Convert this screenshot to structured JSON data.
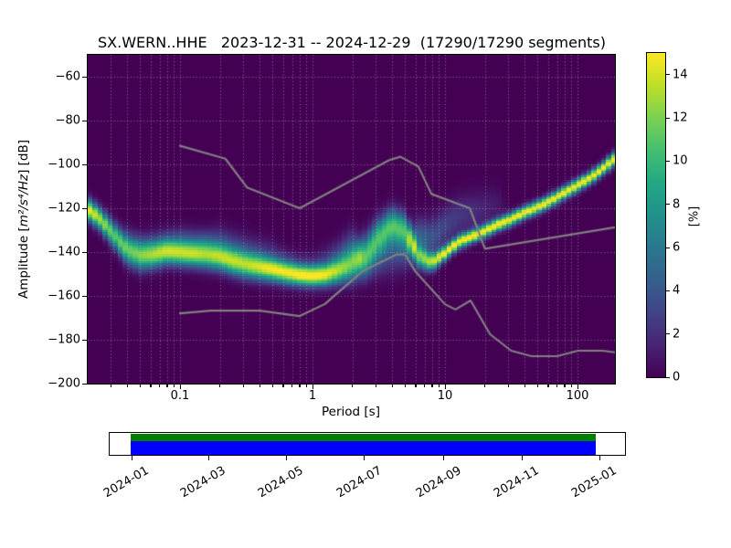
{
  "title": "SX.WERN..HHE   2023-12-31 -- 2024-12-29  (17290/17290 segments)",
  "station": "SX.WERN..HHE",
  "date_range": [
    "2023-12-31",
    "2024-12-29"
  ],
  "segments_used": 17290,
  "segments_total": 17290,
  "chart_data": {
    "type": "heatmap",
    "title": "SX.WERN..HHE   2023-12-31 -- 2024-12-29  (17290/17290 segments)",
    "xlabel": "Period [s]",
    "ylabel": "Amplitude [m²/s⁴/Hz] [dB]",
    "ylabel_parts": {
      "prefix": "Amplitude [",
      "math": "m²/s⁴/Hz",
      "suffix": "] [dB]"
    },
    "x_scale": "log",
    "xlim": [
      0.02,
      192
    ],
    "ylim": [
      -200,
      -50
    ],
    "grid": true,
    "grid_color": "rgba(190,190,190,0.6)",
    "background_color": "#440154",
    "x_ticks": {
      "major": [
        0.1,
        1,
        10,
        100
      ],
      "major_labels": [
        "0.1",
        "1",
        "10",
        "100"
      ],
      "minor": [
        0.02,
        0.03,
        0.04,
        0.05,
        0.06,
        0.07,
        0.08,
        0.09,
        0.2,
        0.3,
        0.4,
        0.5,
        0.6,
        0.7,
        0.8,
        0.9,
        2,
        3,
        4,
        5,
        6,
        7,
        8,
        9,
        20,
        30,
        40,
        50,
        60,
        70,
        80,
        90,
        200
      ]
    },
    "y_ticks": {
      "values": [
        -200,
        -180,
        -160,
        -140,
        -120,
        -100,
        -80,
        -60
      ],
      "labels": [
        "−200",
        "−180",
        "−160",
        "−140",
        "−120",
        "−100",
        "−80",
        "−60"
      ]
    },
    "y_gridlines": [
      -180,
      -160,
      -140,
      -120,
      -100,
      -80,
      -60
    ],
    "colorbar": {
      "label": "[%]",
      "min": 0,
      "max": 15,
      "ticks": [
        0,
        2,
        4,
        6,
        8,
        10,
        12,
        14
      ],
      "tick_labels": [
        "0",
        "2",
        "4",
        "6",
        "8",
        "10",
        "12",
        "14"
      ],
      "colormap": "viridis",
      "stops": [
        [
          0.0,
          "#440154"
        ],
        [
          0.1,
          "#482475"
        ],
        [
          0.2,
          "#414487"
        ],
        [
          0.3,
          "#355f8d"
        ],
        [
          0.4,
          "#2a788e"
        ],
        [
          0.5,
          "#21918c"
        ],
        [
          0.6,
          "#22a884"
        ],
        [
          0.7,
          "#44bf70"
        ],
        [
          0.8,
          "#7ad151"
        ],
        [
          0.9,
          "#bddf26"
        ],
        [
          1.0,
          "#fde725"
        ]
      ]
    },
    "pdf": {
      "description": "PPSD probability ridge: per period [s] the mode amplitude [dB], gaussian spread sigma [dB], peak probability [%], plus secondary halo component (offset dB, sigma dB, amplitude %).",
      "columns_format": [
        "period_s",
        "mode_db",
        "sigma_db",
        "peak_pct",
        "halo_offset_db",
        "halo_sigma_db",
        "halo_pct"
      ],
      "columns": [
        [
          0.02,
          -120.0,
          3.2,
          15.0,
          0,
          4,
          0
        ],
        [
          0.025,
          -125.0,
          3.4,
          13.0,
          0,
          4,
          0
        ],
        [
          0.032,
          -132.5,
          3.8,
          11.0,
          0,
          4,
          0
        ],
        [
          0.04,
          -139.5,
          4.2,
          10.5,
          5,
          4,
          2.0
        ],
        [
          0.05,
          -142.0,
          4.2,
          11.0,
          5,
          4,
          2.5
        ],
        [
          0.063,
          -141.5,
          4.0,
          12.0,
          5,
          4,
          2.5
        ],
        [
          0.079,
          -140.0,
          3.8,
          13.0,
          5,
          4,
          2.5
        ],
        [
          0.1,
          -140.5,
          3.8,
          13.0,
          6,
          4,
          3.0
        ],
        [
          0.126,
          -141.0,
          3.8,
          13.0,
          6,
          4,
          3.0
        ],
        [
          0.158,
          -141.5,
          4.0,
          12.0,
          6,
          4,
          3.5
        ],
        [
          0.2,
          -142.5,
          4.0,
          12.0,
          6,
          5,
          3.5
        ],
        [
          0.251,
          -144.5,
          4.0,
          12.0,
          6,
          5,
          3.5
        ],
        [
          0.316,
          -146.0,
          4.0,
          12.0,
          6,
          5,
          3.0
        ],
        [
          0.398,
          -147.0,
          3.8,
          13.0,
          6,
          5,
          2.5
        ],
        [
          0.501,
          -148.0,
          3.6,
          14.0,
          6,
          5,
          2.0
        ],
        [
          0.631,
          -149.5,
          3.4,
          14.0,
          5,
          4,
          2.0
        ],
        [
          0.794,
          -150.5,
          3.2,
          15.0,
          5,
          4,
          1.5
        ],
        [
          1.0,
          -151.0,
          3.2,
          15.0,
          5,
          4,
          1.5
        ],
        [
          1.259,
          -150.5,
          3.4,
          14.0,
          6,
          5,
          2.0
        ],
        [
          1.585,
          -148.5,
          4.0,
          12.0,
          7,
          5,
          3.0
        ],
        [
          1.995,
          -146.0,
          5.0,
          10.0,
          8,
          6,
          4.0
        ],
        [
          2.512,
          -141.0,
          6.0,
          9.0,
          -5,
          5,
          3.0
        ],
        [
          3.162,
          -133.0,
          5.5,
          9.5,
          -9,
          6,
          4.0
        ],
        [
          3.981,
          -127.5,
          5.0,
          10.0,
          -11,
          7,
          4.0
        ],
        [
          5.012,
          -130.0,
          5.0,
          9.5,
          -9,
          6,
          4.0
        ],
        [
          6.31,
          -142.0,
          3.5,
          10.0,
          8,
          6,
          5.0
        ],
        [
          7.943,
          -145.0,
          2.6,
          13.0,
          11,
          6,
          4.0
        ],
        [
          10.0,
          -140.5,
          2.2,
          15.0,
          12,
          6,
          3.0
        ],
        [
          12.589,
          -135.5,
          2.1,
          15.0,
          12,
          6,
          2.5
        ],
        [
          15.849,
          -133.0,
          2.0,
          15.0,
          11,
          6,
          2.0
        ],
        [
          19.953,
          -130.5,
          2.0,
          15.0,
          10,
          6,
          1.5
        ],
        [
          25.119,
          -127.5,
          2.0,
          15.0,
          9,
          6,
          1.0
        ],
        [
          31.623,
          -125.0,
          2.0,
          15.0,
          0,
          4,
          0
        ],
        [
          39.811,
          -122.0,
          2.0,
          15.0,
          0,
          4,
          0
        ],
        [
          50.119,
          -119.5,
          2.0,
          15.0,
          0,
          4,
          0
        ],
        [
          63.096,
          -116.5,
          2.0,
          15.0,
          0,
          4,
          0
        ],
        [
          79.433,
          -113.0,
          2.0,
          15.0,
          0,
          4,
          0
        ],
        [
          100.0,
          -109.5,
          2.0,
          15.0,
          0,
          4,
          0
        ],
        [
          125.893,
          -106.0,
          2.0,
          15.0,
          0,
          4,
          0
        ],
        [
          158.489,
          -101.5,
          2.0,
          15.0,
          0,
          4,
          0
        ],
        [
          199.526,
          -96.5,
          2.2,
          15.0,
          0,
          4,
          0
        ]
      ]
    },
    "noise_models": {
      "color": "#808080",
      "nhnm": [
        [
          0.1,
          -91.5
        ],
        [
          0.22,
          -97.4
        ],
        [
          0.32,
          -110.5
        ],
        [
          0.8,
          -120.0
        ],
        [
          3.8,
          -98.0
        ],
        [
          4.6,
          -96.5
        ],
        [
          6.3,
          -101.0
        ],
        [
          7.9,
          -113.5
        ],
        [
          15.4,
          -120.0
        ],
        [
          20.0,
          -138.5
        ],
        [
          354.8,
          -126.0
        ]
      ],
      "nlnm": [
        [
          0.1,
          -168.0
        ],
        [
          0.17,
          -166.7
        ],
        [
          0.4,
          -166.7
        ],
        [
          0.8,
          -169.2
        ],
        [
          1.24,
          -163.7
        ],
        [
          2.4,
          -148.6
        ],
        [
          4.3,
          -141.1
        ],
        [
          5.0,
          -141.1
        ],
        [
          6.0,
          -149.0
        ],
        [
          10.0,
          -163.8
        ],
        [
          12.0,
          -166.2
        ],
        [
          15.6,
          -162.1
        ],
        [
          21.9,
          -177.5
        ],
        [
          31.6,
          -185.0
        ],
        [
          45.0,
          -187.5
        ],
        [
          70.0,
          -187.5
        ],
        [
          101.0,
          -185.0
        ],
        [
          154.0,
          -185.0
        ],
        [
          328.0,
          -187.5
        ]
      ]
    },
    "timeline": {
      "tick_labels": [
        "2024-01",
        "2024-03",
        "2024-05",
        "2024-07",
        "2024-09",
        "2024-11",
        "2025-01"
      ],
      "tick_day_offsets": [
        0,
        60,
        121,
        182,
        244,
        305,
        366
      ],
      "coverage_bar_days": [
        -1,
        363
      ],
      "extent_bar_days": [
        -1,
        363
      ],
      "coverage_color": "#008000",
      "extent_color": "#0000ff"
    }
  }
}
